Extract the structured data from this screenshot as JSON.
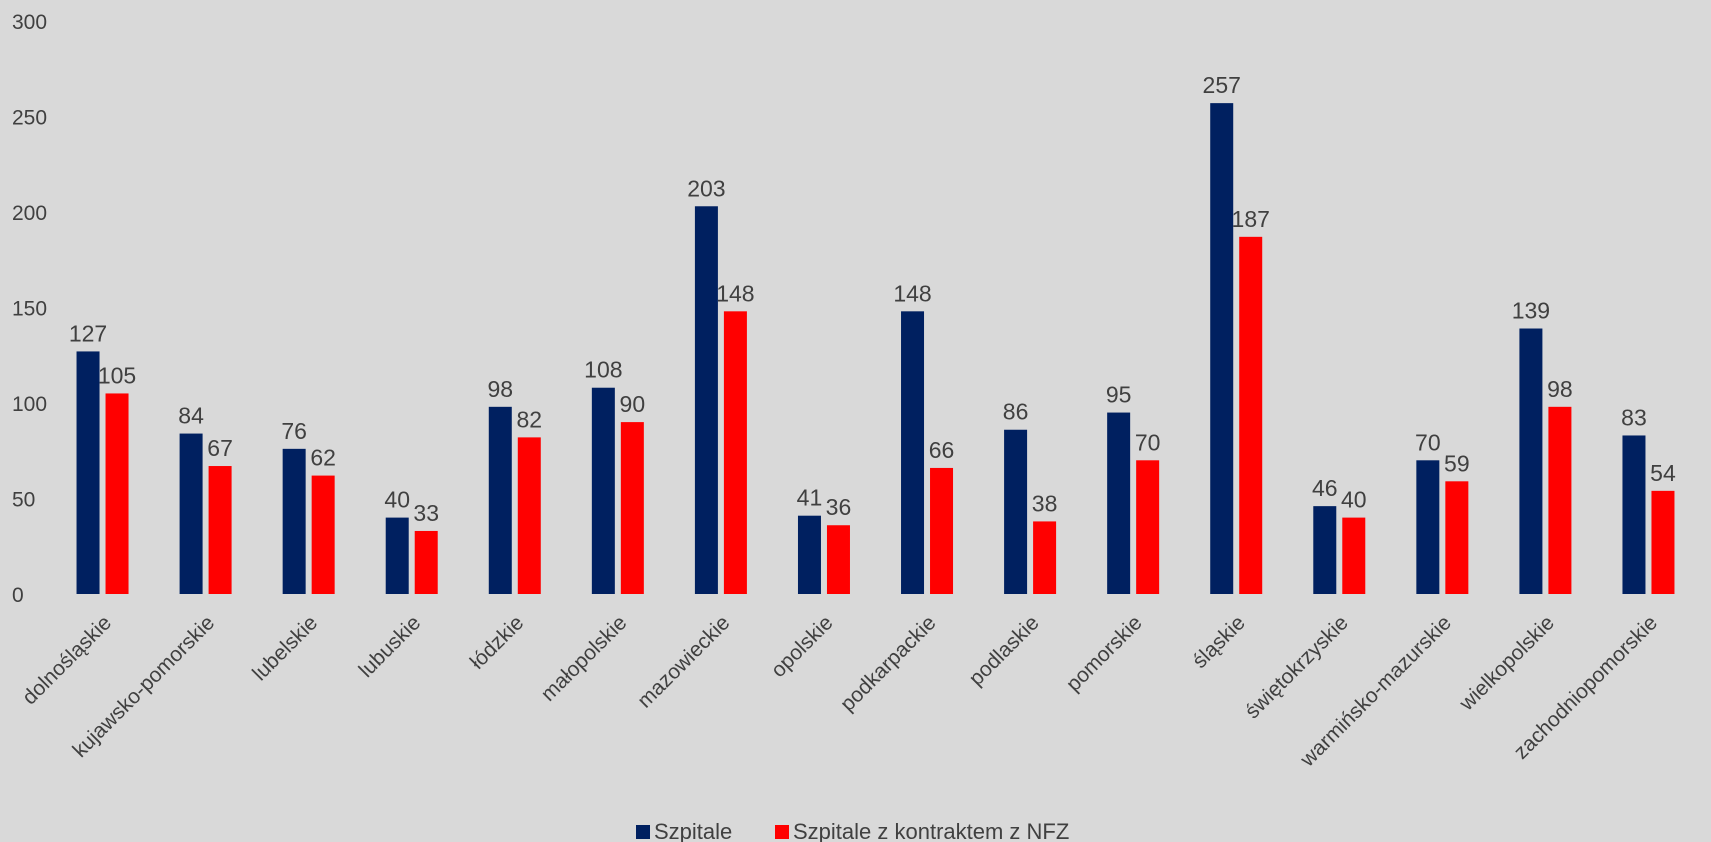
{
  "chart_data": {
    "type": "bar",
    "categories": [
      "dolnośląskie",
      "kujawsko-pomorskie",
      "lubelskie",
      "lubuskie",
      "łódzkie",
      "małopolskie",
      "mazowieckie",
      "opolskie",
      "podkarpackie",
      "podlaskie",
      "pomorskie",
      "śląskie",
      "świętokrzyskie",
      "warmińsko-mazurskie",
      "wielkopolskie",
      "zachodniopomorskie"
    ],
    "series": [
      {
        "name": "Szpitale",
        "color": "#002060",
        "values": [
          127,
          84,
          76,
          40,
          98,
          108,
          203,
          41,
          148,
          86,
          95,
          257,
          46,
          70,
          139,
          83
        ]
      },
      {
        "name": "Szpitale z kontraktem z NFZ",
        "color": "#ff0000",
        "values": [
          105,
          67,
          62,
          33,
          82,
          90,
          148,
          36,
          66,
          38,
          70,
          187,
          40,
          59,
          98,
          54
        ]
      }
    ],
    "ylim": [
      0,
      300
    ],
    "yticks": [
      0,
      50,
      100,
      150,
      200,
      250,
      300
    ],
    "grid": false,
    "legend": "bottom-center"
  }
}
